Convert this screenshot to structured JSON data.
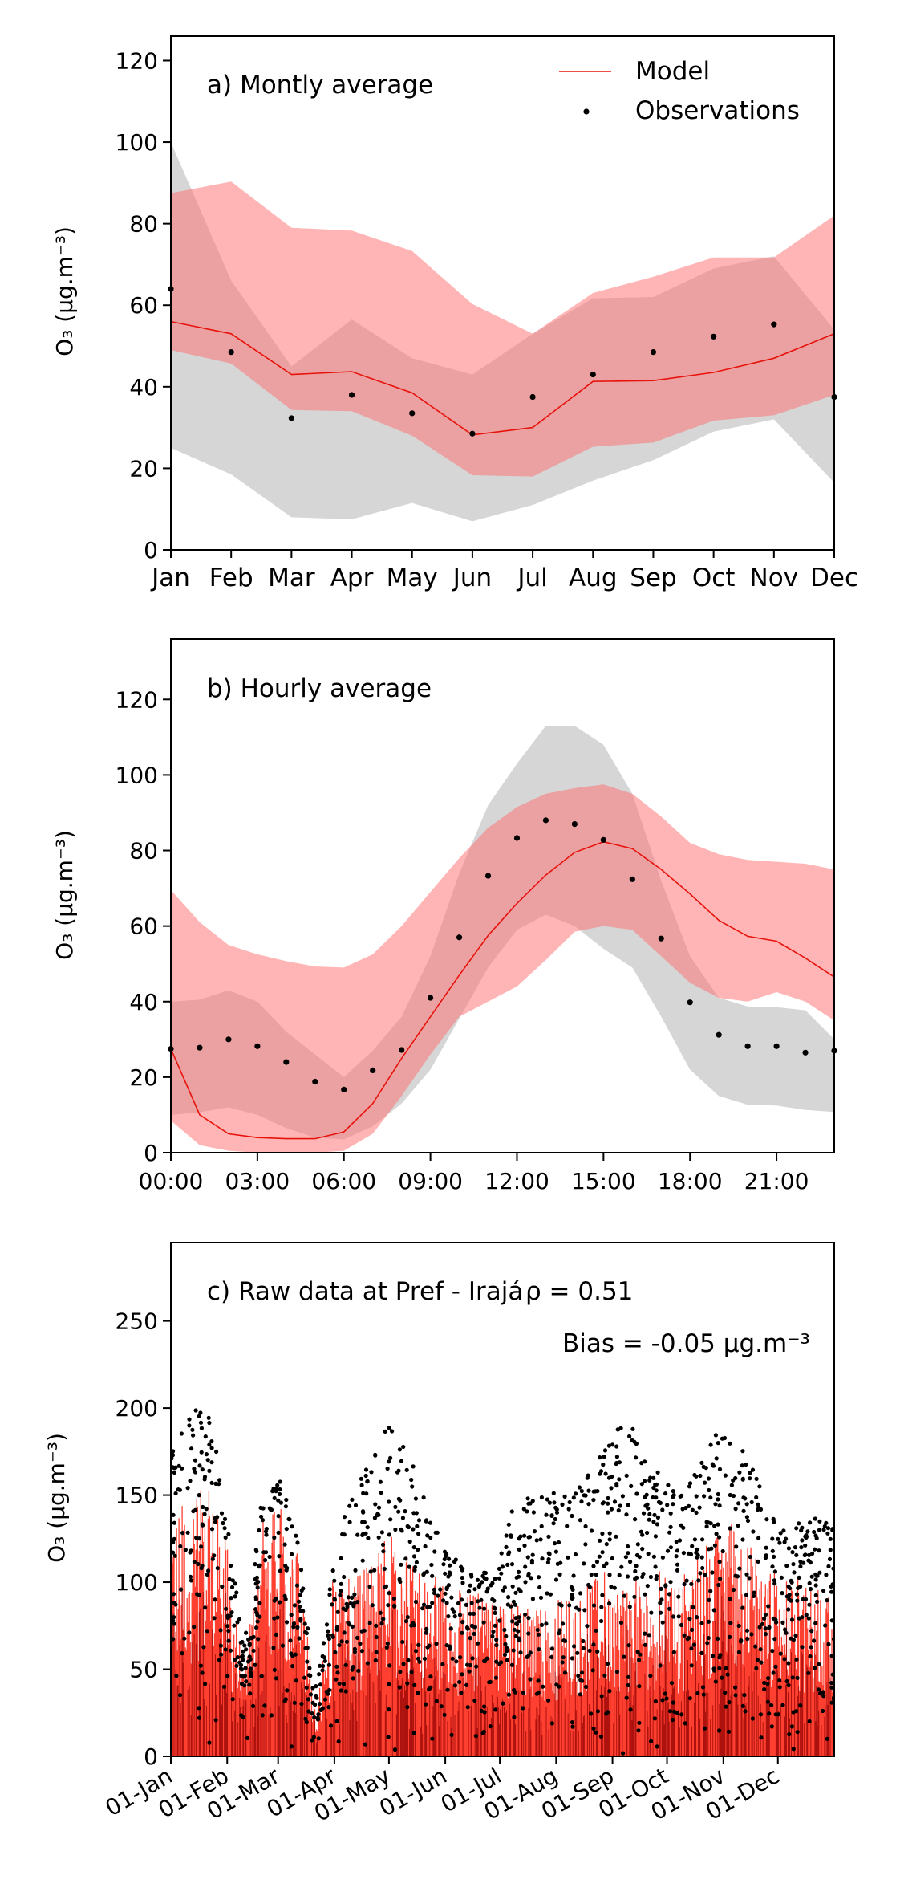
{
  "chart_data": [
    {
      "type": "line",
      "panel_label": "a) Montly average",
      "ylabel": "O₃ (μg.m⁻³)",
      "ylim": [
        0,
        126
      ],
      "yticks": [
        0,
        20,
        40,
        60,
        80,
        100,
        120
      ],
      "categories": [
        "Jan",
        "Feb",
        "Mar",
        "Apr",
        "May",
        "Jun",
        "Jul",
        "Aug",
        "Sep",
        "Oct",
        "Nov",
        "Dec"
      ],
      "legend": {
        "placement": "top-right",
        "model_label": "Model",
        "obs_label": "Observations"
      },
      "colors": {
        "model": "#e8120c",
        "model_band": "#ffb0b0",
        "obs_band": "#cfcfcf",
        "overlap": "#d6a8a8",
        "obs": "#000000"
      },
      "series": [
        {
          "name": "Model",
          "kind": "line",
          "values": [
            56,
            53,
            43,
            43.7,
            38.5,
            28.2,
            30,
            41.3,
            41.5,
            43.5,
            47,
            53
          ]
        },
        {
          "name": "Observations",
          "kind": "points",
          "values": [
            64,
            48.5,
            32.3,
            38,
            33.5,
            28.5,
            37.5,
            43,
            48.5,
            52.3,
            55.3,
            37.5
          ]
        }
      ],
      "model_band": {
        "upper": [
          87.5,
          90.3,
          79,
          78.3,
          73.3,
          60.3,
          53,
          63,
          67,
          71.7,
          71.7,
          82
        ],
        "lower": [
          49,
          45.7,
          34.3,
          34,
          28,
          18.3,
          18,
          25.3,
          26.3,
          31.7,
          33,
          38
        ]
      },
      "obs_band": {
        "upper": [
          100,
          66,
          45,
          56.5,
          47,
          43,
          53,
          61.7,
          62,
          69,
          72,
          54
        ],
        "lower": [
          25,
          18.5,
          8,
          7.5,
          11.5,
          7,
          11,
          17,
          22,
          29,
          32,
          16.5
        ]
      }
    },
    {
      "type": "line",
      "panel_label": "b) Hourly average",
      "ylabel": "O₃ (μg.m⁻³)",
      "ylim": [
        0,
        136
      ],
      "yticks": [
        0,
        20,
        40,
        60,
        80,
        100,
        120
      ],
      "x": [
        0,
        1,
        2,
        3,
        4,
        5,
        6,
        7,
        8,
        9,
        10,
        11,
        12,
        13,
        14,
        15,
        16,
        17,
        18,
        19,
        20,
        21,
        22,
        23
      ],
      "xticklabels": [
        "00:00",
        "03:00",
        "06:00",
        "09:00",
        "12:00",
        "15:00",
        "18:00",
        "21:00"
      ],
      "xtick_hours": [
        0,
        3,
        6,
        9,
        12,
        15,
        18,
        21
      ],
      "series": [
        {
          "name": "Model",
          "kind": "line",
          "values": [
            27.5,
            10,
            5,
            4,
            3.7,
            3.7,
            5.5,
            13,
            25,
            36,
            47,
            57.5,
            66,
            73.5,
            79.5,
            82.3,
            80.5,
            75,
            68.5,
            61.5,
            57.3,
            56,
            51.5,
            46.5
          ]
        },
        {
          "name": "Observations",
          "kind": "points",
          "values": [
            27.5,
            27.8,
            30,
            28.2,
            24,
            18.8,
            16.7,
            21.8,
            27.2,
            41,
            57,
            73.3,
            83.3,
            88,
            87,
            82.8,
            72.4,
            56.7,
            39.8,
            31.2,
            28.2,
            28.2,
            26.5,
            27
          ]
        }
      ],
      "model_band": {
        "upper": [
          69.5,
          61,
          55,
          52.5,
          50.7,
          49.3,
          49,
          52.5,
          60,
          69,
          78,
          86,
          91.5,
          95,
          96.5,
          97.5,
          95,
          89,
          82,
          79,
          77.5,
          77,
          76.5,
          75
        ],
        "lower": [
          8.5,
          2,
          0.5,
          0,
          0,
          0,
          0.5,
          5,
          15,
          26,
          36,
          40,
          44,
          51,
          58.5,
          60,
          59,
          52,
          45,
          41,
          40,
          42.5,
          40,
          35
        ]
      },
      "obs_band": {
        "upper": [
          40,
          40.5,
          43,
          40,
          32,
          26,
          20,
          27,
          36,
          52,
          74,
          92,
          103,
          113,
          113,
          108,
          95,
          72,
          52,
          41,
          38.7,
          38.5,
          37.7,
          30
        ],
        "lower": [
          10,
          10.7,
          12,
          10,
          6.5,
          4,
          3.5,
          7,
          13,
          22,
          35.5,
          49,
          59,
          63,
          60,
          54,
          49,
          36,
          22,
          15,
          12.7,
          12.5,
          11.3,
          10.8
        ]
      }
    },
    {
      "type": "line",
      "panel_label": "c) Raw data at Pref - Irajá",
      "stat_r": "ρ = 0.51",
      "stat_bias": "Bias = -0.05 μg.m⁻³",
      "ylabel": "O₃ (μg.m⁻³)",
      "ylim": [
        0,
        295
      ],
      "yticks": [
        0,
        50,
        100,
        150,
        200,
        250
      ],
      "x_range_days": [
        0,
        365
      ],
      "xticklabels": [
        "01-Jan",
        "01-Feb",
        "01-Mar",
        "01-Apr",
        "01-May",
        "01-Jun",
        "01-Jul",
        "01-Aug",
        "01-Sep",
        "01-Oct",
        "01-Nov",
        "01-Dec"
      ],
      "xtick_days": [
        0,
        31,
        59,
        90,
        120,
        151,
        181,
        212,
        243,
        273,
        304,
        334
      ],
      "envelope_days": [
        0,
        10,
        20,
        30,
        40,
        50,
        60,
        70,
        80,
        90,
        100,
        110,
        120,
        130,
        140,
        150,
        160,
        170,
        180,
        190,
        200,
        210,
        220,
        230,
        240,
        250,
        260,
        270,
        280,
        290,
        300,
        310,
        320,
        330,
        340,
        350,
        360
      ],
      "model_envelope": [
        140,
        150,
        155,
        130,
        50,
        135,
        145,
        120,
        25,
        110,
        100,
        115,
        130,
        120,
        110,
        100,
        95,
        95,
        90,
        90,
        85,
        90,
        95,
        100,
        110,
        100,
        105,
        110,
        100,
        120,
        130,
        140,
        120,
        110,
        100,
        105,
        100
      ],
      "obs_envelope": [
        175,
        200,
        200,
        150,
        60,
        150,
        160,
        125,
        40,
        125,
        150,
        175,
        195,
        175,
        150,
        120,
        110,
        105,
        110,
        150,
        150,
        155,
        150,
        165,
        185,
        200,
        175,
        165,
        150,
        165,
        185,
        190,
        165,
        140,
        130,
        140,
        140
      ]
    }
  ]
}
